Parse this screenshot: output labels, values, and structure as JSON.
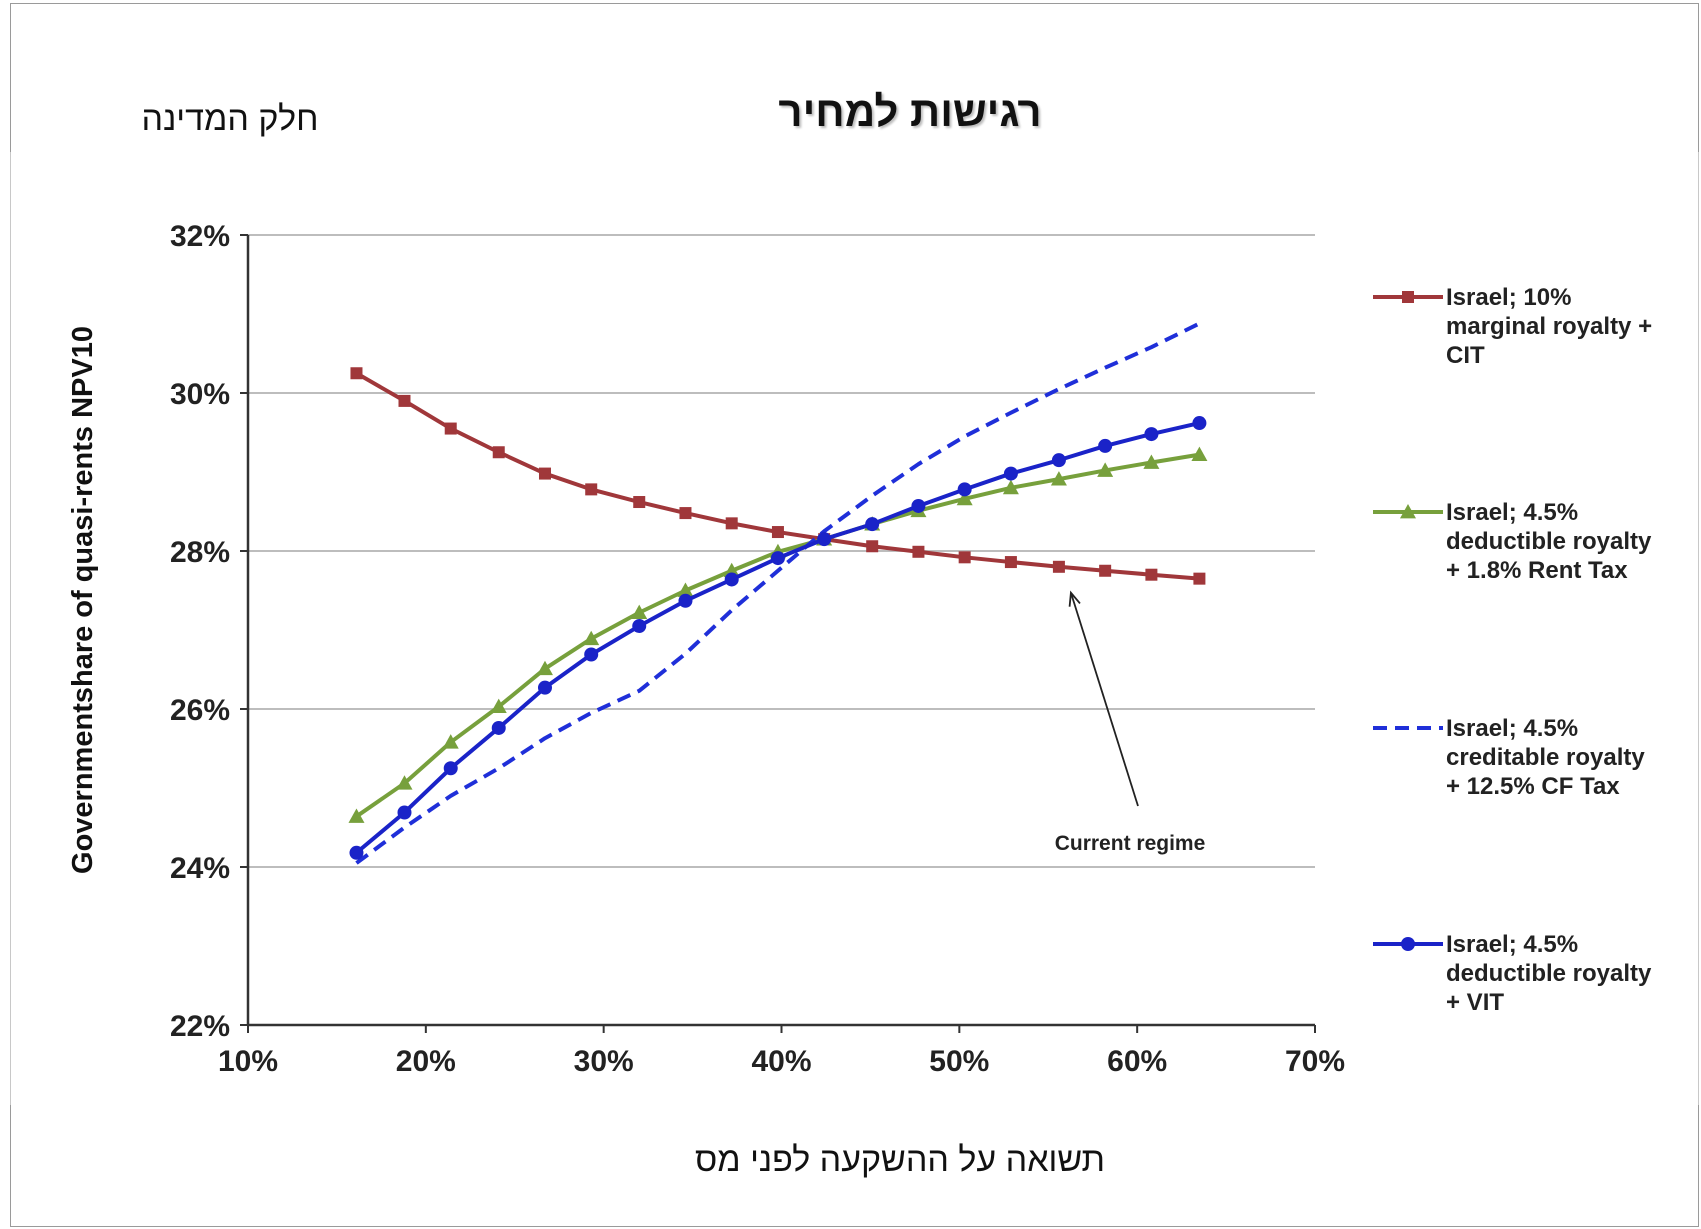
{
  "header": {
    "title": "רגישות למחיר",
    "y_axis_header": "חלק המדינה",
    "x_axis_footer": "תשואה על ההשקעה לפני מס"
  },
  "chart_data": {
    "type": "line",
    "title": "",
    "ylabel": "Governmentshare of quasi-rents NPV10",
    "xlabel": "",
    "xlim": [
      0.1,
      0.7
    ],
    "ylim": [
      0.22,
      0.32
    ],
    "x_ticks": [
      0.1,
      0.2,
      0.3,
      0.4,
      0.5,
      0.6,
      0.7
    ],
    "x_tick_labels": [
      "10%",
      "20%",
      "30%",
      "40%",
      "50%",
      "60%",
      "70%"
    ],
    "y_ticks": [
      0.22,
      0.24,
      0.26,
      0.28,
      0.3,
      0.32
    ],
    "y_tick_labels": [
      "22%",
      "24%",
      "26%",
      "28%",
      "30%",
      "32%"
    ],
    "grid": "horizontal",
    "legend_position": "right",
    "x": [
      0.161,
      0.188,
      0.214,
      0.241,
      0.267,
      0.293,
      0.32,
      0.346,
      0.372,
      0.398,
      0.424,
      0.451,
      0.477,
      0.503,
      0.529,
      0.556,
      0.582,
      0.608,
      0.635
    ],
    "series": [
      {
        "name": "Israel; 10% marginal royalty + CIT",
        "color": "#a0373a",
        "marker": "square",
        "dash": "solid",
        "values": [
          0.3025,
          0.299,
          0.2955,
          0.2925,
          0.2898,
          0.2878,
          0.2862,
          0.2848,
          0.2835,
          0.2824,
          0.2815,
          0.2806,
          0.2799,
          0.2792,
          0.2786,
          0.278,
          0.2775,
          0.277,
          0.2765
        ]
      },
      {
        "name": "Israel; 4.5% deductible royalty + 1.8% Rent Tax",
        "color": "#77a03c",
        "marker": "triangle",
        "dash": "solid",
        "values": [
          0.2464,
          0.2506,
          0.2558,
          0.2603,
          0.2651,
          0.2689,
          0.2722,
          0.275,
          0.2775,
          0.2799,
          0.2815,
          0.2834,
          0.2851,
          0.2866,
          0.288,
          0.2891,
          0.2902,
          0.2912,
          0.2922
        ]
      },
      {
        "name": "Israel; 4.5% creditable royalty + 12.5% CF Tax",
        "color": "#1f2fd9",
        "marker": "none",
        "dash": "dashed",
        "values": [
          0.2405,
          0.245,
          0.249,
          0.2525,
          0.2563,
          0.2595,
          0.2623,
          0.267,
          0.2725,
          0.2775,
          0.2825,
          0.287,
          0.291,
          0.2945,
          0.2975,
          0.3005,
          0.3032,
          0.3058,
          0.3088
        ]
      },
      {
        "name": "Israel; 4.5% deductible royalty + VIT",
        "color": "#1a23c8",
        "marker": "circle",
        "dash": "solid",
        "values": [
          0.2418,
          0.2469,
          0.2525,
          0.2576,
          0.2627,
          0.2669,
          0.2705,
          0.2737,
          0.2764,
          0.2791,
          0.2815,
          0.2834,
          0.2857,
          0.2878,
          0.2898,
          0.2915,
          0.2933,
          0.2948,
          0.2962
        ]
      }
    ],
    "legend_lines": [
      [
        "Israel; 10%",
        "marginal royalty +",
        "CIT"
      ],
      [
        "Israel; 4.5%",
        "deductible royalty",
        "+ 1.8% Rent Tax"
      ],
      [
        "Israel; 4.5%",
        "creditable royalty",
        "+ 12.5% CF Tax"
      ],
      [
        "Israel; 4.5%",
        "deductible royalty",
        "+ VIT"
      ]
    ],
    "annotation": {
      "text": "Current regime",
      "target_x": 0.556,
      "target_y": 0.2775
    }
  }
}
